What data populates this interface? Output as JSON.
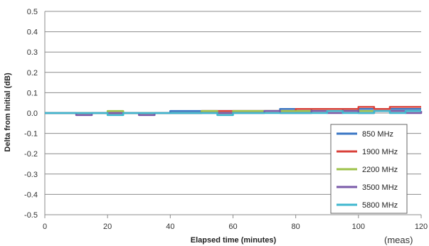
{
  "chart_data": {
    "type": "line",
    "title": "",
    "xlabel": "Elapsed time (minutes)",
    "ylabel": "Delta from Initial (dB)",
    "xlim": [
      0,
      120
    ],
    "ylim": [
      -0.5,
      0.5
    ],
    "xticks": [
      0,
      20,
      40,
      60,
      80,
      100,
      120
    ],
    "xtick_labels": [
      "0",
      "20",
      "40",
      "60",
      "80",
      "100",
      "120"
    ],
    "yticks": [
      0.5,
      0.4,
      0.3,
      0.2,
      0.1,
      0.0,
      -0.1,
      -0.2,
      -0.3,
      -0.4,
      -0.5
    ],
    "ytick_labels": [
      "0.5",
      "0.4",
      "0.3",
      "0.2",
      "0.1",
      "0.0",
      "-0.1",
      "-0.2",
      "-0.3",
      "-0.4",
      "-0.5"
    ],
    "grid": true,
    "legend_position": "bottom-right",
    "series": [
      {
        "name": "850 MHz",
        "color": "#3a76c4",
        "x": [
          0,
          5,
          10,
          15,
          20,
          25,
          30,
          35,
          40,
          45,
          50,
          55,
          60,
          65,
          70,
          75,
          80,
          85,
          90,
          95,
          100,
          105,
          110,
          115,
          120
        ],
        "y": [
          0.0,
          0.0,
          0.0,
          0.0,
          0.0,
          0.0,
          0.0,
          0.0,
          0.01,
          0.01,
          0.01,
          0.01,
          0.01,
          0.01,
          0.01,
          0.02,
          0.01,
          0.02,
          0.02,
          0.01,
          0.02,
          0.02,
          0.02,
          0.02,
          0.02
        ]
      },
      {
        "name": "1900 MHz",
        "color": "#d9413a",
        "x": [
          0,
          5,
          10,
          15,
          20,
          25,
          30,
          35,
          40,
          45,
          50,
          55,
          60,
          65,
          70,
          75,
          80,
          85,
          90,
          95,
          100,
          105,
          110,
          115,
          120
        ],
        "y": [
          0.0,
          0.0,
          0.0,
          0.0,
          0.0,
          0.0,
          0.0,
          0.0,
          0.0,
          0.0,
          0.01,
          0.01,
          0.01,
          0.01,
          0.01,
          0.01,
          0.02,
          0.02,
          0.02,
          0.02,
          0.03,
          0.02,
          0.03,
          0.03,
          0.03
        ]
      },
      {
        "name": "2200 MHz",
        "color": "#9dc24a",
        "x": [
          0,
          5,
          10,
          15,
          20,
          25,
          30,
          35,
          40,
          45,
          50,
          55,
          60,
          65,
          70,
          75,
          80,
          85,
          90,
          95,
          100,
          105,
          110,
          115,
          120
        ],
        "y": [
          0.0,
          0.0,
          0.0,
          0.0,
          0.01,
          0.0,
          0.0,
          0.0,
          0.0,
          0.0,
          0.01,
          0.0,
          0.01,
          0.01,
          0.01,
          0.01,
          0.01,
          0.01,
          0.01,
          0.01,
          0.01,
          0.01,
          0.01,
          0.01,
          0.01
        ]
      },
      {
        "name": "3500 MHz",
        "color": "#7a5aa8",
        "x": [
          0,
          5,
          10,
          15,
          20,
          25,
          30,
          35,
          40,
          45,
          50,
          55,
          60,
          65,
          70,
          75,
          80,
          85,
          90,
          95,
          100,
          105,
          110,
          115,
          120
        ],
        "y": [
          0.0,
          0.0,
          -0.01,
          0.0,
          0.0,
          0.0,
          -0.01,
          0.0,
          0.0,
          0.0,
          0.0,
          0.0,
          0.0,
          0.0,
          0.01,
          0.0,
          0.0,
          0.01,
          0.0,
          0.01,
          0.0,
          0.01,
          0.01,
          0.0,
          0.01
        ]
      },
      {
        "name": "5800 MHz",
        "color": "#3fb7cf",
        "x": [
          0,
          5,
          10,
          15,
          20,
          25,
          30,
          35,
          40,
          45,
          50,
          55,
          60,
          65,
          70,
          75,
          80,
          85,
          90,
          95,
          100,
          105,
          110,
          115,
          120
        ],
        "y": [
          0.0,
          0.0,
          0.0,
          0.0,
          -0.01,
          0.0,
          0.0,
          0.0,
          0.0,
          0.0,
          0.0,
          -0.01,
          0.0,
          0.0,
          0.0,
          0.0,
          0.0,
          0.0,
          0.01,
          0.0,
          0.0,
          0.01,
          0.0,
          0.01,
          0.01
        ]
      }
    ]
  },
  "note": "(meas)"
}
